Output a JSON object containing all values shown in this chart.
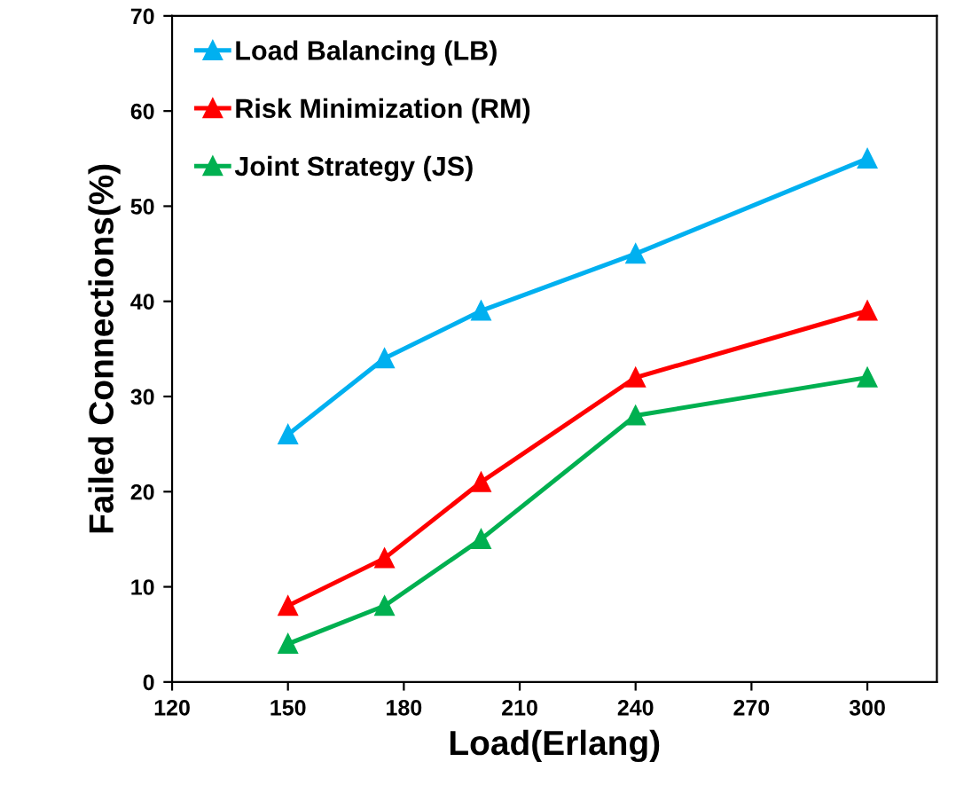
{
  "chart_data": {
    "type": "line",
    "xlabel": "Load(Erlang)",
    "ylabel": "Failed Connections(%)",
    "x": [
      150,
      175,
      200,
      240,
      300
    ],
    "series": [
      {
        "name": "Load Balancing (LB)",
        "color": "#00b0f0",
        "values": [
          26,
          34,
          39,
          45,
          55
        ]
      },
      {
        "name": "Risk Minimization (RM)",
        "color": "#ff0000",
        "values": [
          8,
          13,
          21,
          32,
          39
        ]
      },
      {
        "name": "Joint Strategy (JS)",
        "color": "#00b050",
        "values": [
          4,
          8,
          15,
          28,
          32
        ]
      }
    ],
    "xlim": [
      120,
      318
    ],
    "xticks": [
      120,
      150,
      180,
      210,
      240,
      270,
      300
    ],
    "ylim": [
      0,
      70
    ],
    "yticks": [
      0,
      10,
      20,
      30,
      40,
      50,
      60,
      70
    ],
    "grid": false,
    "legend": "top left",
    "marker": "triangle",
    "line_style": "solid"
  }
}
